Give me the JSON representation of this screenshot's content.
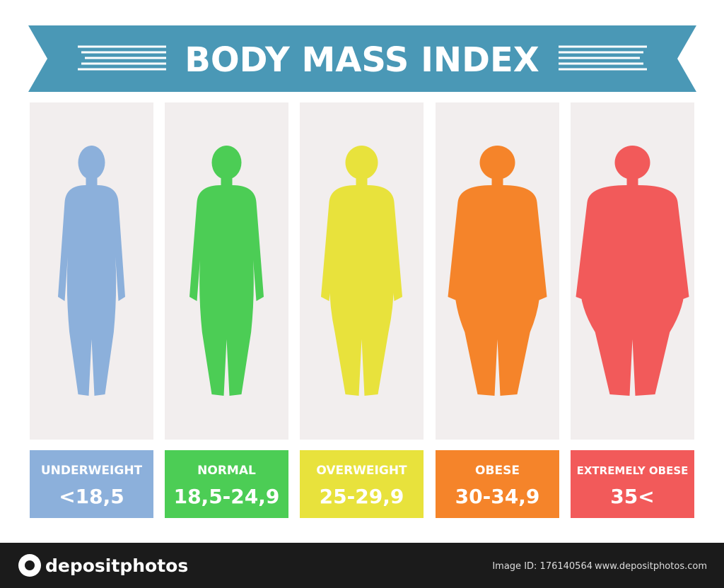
{
  "title": "BODY MASS INDEX",
  "categories": [
    {
      "label": "UNDERWEIGHT",
      "range": "<18,5",
      "color": "#8cb0db"
    },
    {
      "label": "NORMAL",
      "range": "18,5-24,9",
      "color": "#4ccd55"
    },
    {
      "label": "OVERWEIGHT",
      "range": "25-29,9",
      "color": "#e8e23c"
    },
    {
      "label": "OBESE",
      "range": "30-34,9",
      "color": "#f5842a"
    },
    {
      "label": "EXTREMELY OBESE",
      "range": "35<",
      "color": "#f25a5a"
    }
  ],
  "footer": {
    "brand": "depositphotos",
    "image_id": "Image ID: 176140564",
    "site": "www.depositphotos.com"
  }
}
